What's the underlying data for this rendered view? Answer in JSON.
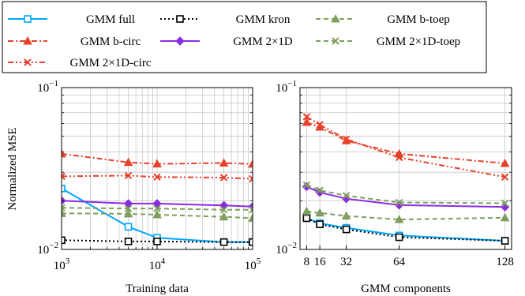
{
  "legend": {
    "entries": [
      {
        "name": "GMM full",
        "color": "#00a8ff",
        "dash": "solid",
        "marker": "square"
      },
      {
        "name": "GMM kron",
        "color": "#000000",
        "dash": "dotted",
        "marker": "square"
      },
      {
        "name": "GMM b-toep",
        "color": "#7f9f5f",
        "dash": "dashed",
        "marker": "triangle"
      },
      {
        "name": "GMM b-circ",
        "color": "#e8402a",
        "dash": "dashdot",
        "marker": "triangle"
      },
      {
        "name": "GMM 2×1D",
        "color": "#8a2be2",
        "dash": "solid",
        "marker": "diamond"
      },
      {
        "name": "GMM 2×1D-toep",
        "color": "#7f9f5f",
        "dash": "dashed",
        "marker": "x"
      },
      {
        "name": "GMM 2×1D-circ",
        "color": "#e8402a",
        "dash": "dashdotdot",
        "marker": "x"
      }
    ]
  },
  "ylabel": "Normalized MSE",
  "chart_data": [
    {
      "type": "line",
      "xscale": "log",
      "yscale": "log",
      "xlabel": "Training data",
      "ylabel": "Normalized MSE",
      "xlim": [
        1000,
        100000
      ],
      "ylim": [
        0.01,
        0.1
      ],
      "xticks": [
        {
          "value": 1000,
          "base": "10",
          "exp": "3"
        },
        {
          "value": 10000,
          "base": "10",
          "exp": "4"
        },
        {
          "value": 100000,
          "base": "10",
          "exp": "5"
        }
      ],
      "yticks": [
        {
          "value": 0.1,
          "base": "10",
          "exp": "−1"
        },
        {
          "value": 0.01,
          "base": "10",
          "exp": "−2"
        }
      ],
      "grid": true,
      "x": [
        1000,
        5000,
        10000,
        50000,
        100000
      ],
      "series": [
        {
          "name": "GMM full",
          "values": [
            0.0238,
            0.0138,
            0.0118,
            0.0111,
            0.0111
          ]
        },
        {
          "name": "GMM kron",
          "values": [
            0.0114,
            0.0112,
            0.0112,
            0.0111,
            0.0111
          ]
        },
        {
          "name": "GMM b-toep",
          "values": [
            0.0167,
            0.0166,
            0.0164,
            0.0159,
            0.0156
          ]
        },
        {
          "name": "GMM b-circ",
          "values": [
            0.039,
            0.0345,
            0.0338,
            0.0342,
            0.0337
          ]
        },
        {
          "name": "GMM 2×1D",
          "values": [
            0.02,
            0.0192,
            0.0192,
            0.0187,
            0.0184
          ]
        },
        {
          "name": "GMM 2×1D-toep",
          "values": [
            0.0181,
            0.0179,
            0.0179,
            0.0176,
            0.0176
          ]
        },
        {
          "name": "GMM 2×1D-circ",
          "values": [
            0.0283,
            0.0286,
            0.028,
            0.0278,
            0.0273
          ]
        }
      ]
    },
    {
      "type": "line",
      "xscale": "linear",
      "yscale": "log",
      "xlabel": "GMM components",
      "ylabel": "",
      "xlim": [
        4,
        132
      ],
      "ylim": [
        0.01,
        0.1
      ],
      "xticks": [
        {
          "value": 8,
          "label": "8"
        },
        {
          "value": 16,
          "label": "16"
        },
        {
          "value": 32,
          "label": "32"
        },
        {
          "value": 64,
          "label": "64"
        },
        {
          "value": 128,
          "label": "128"
        }
      ],
      "yticks": [
        {
          "value": 0.1,
          "base": "10",
          "exp": "−1"
        },
        {
          "value": 0.01,
          "base": "10",
          "exp": "−2"
        }
      ],
      "grid": true,
      "x": [
        8,
        16,
        32,
        64,
        128
      ],
      "series": [
        {
          "name": "GMM full",
          "values": [
            0.0156,
            0.0145,
            0.0136,
            0.0122,
            0.0113
          ]
        },
        {
          "name": "GMM kron",
          "values": [
            0.0156,
            0.0143,
            0.0133,
            0.0119,
            0.0113
          ]
        },
        {
          "name": "GMM b-toep",
          "values": [
            0.0172,
            0.0168,
            0.0161,
            0.0153,
            0.0157
          ]
        },
        {
          "name": "GMM b-circ",
          "values": [
            0.061,
            0.057,
            0.047,
            0.039,
            0.034
          ]
        },
        {
          "name": "GMM 2×1D",
          "values": [
            0.0244,
            0.0225,
            0.0206,
            0.0188,
            0.0183
          ]
        },
        {
          "name": "GMM 2×1D-toep",
          "values": [
            0.025,
            0.0232,
            0.0215,
            0.0195,
            0.0193
          ]
        },
        {
          "name": "GMM 2×1D-circ",
          "values": [
            0.066,
            0.059,
            0.048,
            0.037,
            0.028
          ]
        }
      ]
    }
  ]
}
